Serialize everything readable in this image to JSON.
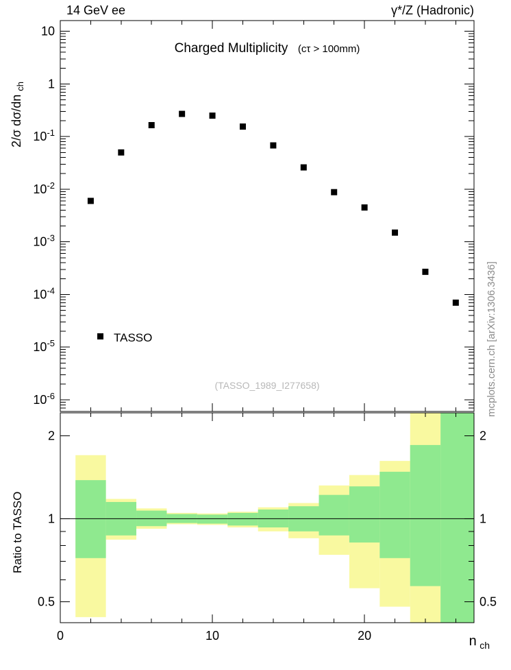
{
  "header": {
    "left": "14 GeV ee",
    "right": "γ*/Z (Hadronic)"
  },
  "top_panel": {
    "title": "Charged Multiplicity",
    "subtitle": "(cτ > 100mm)",
    "ylabel_main": "2/σ dσ/dn",
    "ylabel_sub": "ch",
    "legend_label": "TASSO",
    "watermark": "(TASSO_1989_I277658)"
  },
  "ratio_panel": {
    "ylabel": "Ratio to TASSO"
  },
  "xaxis": {
    "label_main": "n",
    "label_sub": "ch"
  },
  "side_note": "mcplots.cern.ch [arXiv:1306.3436]",
  "colors": {
    "band_yellow": "#f9f9a0",
    "band_green": "#8fe98f",
    "marker": "#000000"
  },
  "chart_data": {
    "type": "scatter",
    "title": "Charged Multiplicity",
    "subtitle": "(cτ > 100mm)",
    "xlabel": "n_ch",
    "ylabel": "2/σ dσ/dn_ch",
    "x_range": [
      0,
      27.2
    ],
    "x_ticks_major": [
      0,
      10,
      20
    ],
    "x_minor_step": 2,
    "top": {
      "y_scale": "log",
      "y_range": [
        6e-07,
        16
      ],
      "y_tick_exponents": [
        1,
        0,
        -1,
        -2,
        -3,
        -4,
        -5,
        -6
      ],
      "series": [
        {
          "name": "TASSO",
          "marker": "filled-square",
          "color": "#000000",
          "x": [
            2,
            4,
            6,
            8,
            10,
            12,
            14,
            16,
            18,
            20,
            22,
            24,
            26
          ],
          "y": [
            0.006,
            0.05,
            0.165,
            0.27,
            0.25,
            0.155,
            0.068,
            0.026,
            0.0088,
            0.0045,
            0.0015,
            0.00027,
            7e-05
          ]
        }
      ]
    },
    "ratio": {
      "y_scale": "log",
      "y_range": [
        0.42,
        2.42
      ],
      "y_ticks": [
        0.5,
        1,
        2
      ],
      "y_minor_ticks": [
        0.6,
        0.7,
        0.8,
        0.9
      ],
      "reference_line": 1,
      "bands": [
        {
          "x": [
            1,
            3
          ],
          "yellow": [
            0.44,
            1.7
          ],
          "green": [
            0.72,
            1.38
          ]
        },
        {
          "x": [
            3,
            5
          ],
          "yellow": [
            0.84,
            1.18
          ],
          "green": [
            0.87,
            1.15
          ]
        },
        {
          "x": [
            5,
            7
          ],
          "yellow": [
            0.92,
            1.09
          ],
          "green": [
            0.94,
            1.07
          ]
        },
        {
          "x": [
            7,
            9
          ],
          "yellow": [
            0.955,
            1.05
          ],
          "green": [
            0.965,
            1.04
          ]
        },
        {
          "x": [
            9,
            11
          ],
          "yellow": [
            0.95,
            1.045
          ],
          "green": [
            0.96,
            1.035
          ]
        },
        {
          "x": [
            11,
            13
          ],
          "yellow": [
            0.93,
            1.06
          ],
          "green": [
            0.945,
            1.05
          ]
        },
        {
          "x": [
            13,
            15
          ],
          "yellow": [
            0.9,
            1.1
          ],
          "green": [
            0.93,
            1.08
          ]
        },
        {
          "x": [
            15,
            17
          ],
          "yellow": [
            0.85,
            1.14
          ],
          "green": [
            0.9,
            1.11
          ]
        },
        {
          "x": [
            17,
            19
          ],
          "yellow": [
            0.74,
            1.32
          ],
          "green": [
            0.87,
            1.22
          ]
        },
        {
          "x": [
            19,
            21
          ],
          "yellow": [
            0.56,
            1.44
          ],
          "green": [
            0.82,
            1.31
          ]
        },
        {
          "x": [
            21,
            23
          ],
          "yellow": [
            0.48,
            1.62
          ],
          "green": [
            0.72,
            1.48
          ]
        },
        {
          "x": [
            23,
            25
          ],
          "yellow": [
            0.42,
            2.42
          ],
          "green": [
            0.57,
            1.85
          ]
        },
        {
          "x": [
            25,
            27.2
          ],
          "yellow": [
            0.42,
            2.42
          ],
          "green": [
            0.42,
            2.42
          ]
        }
      ]
    }
  }
}
